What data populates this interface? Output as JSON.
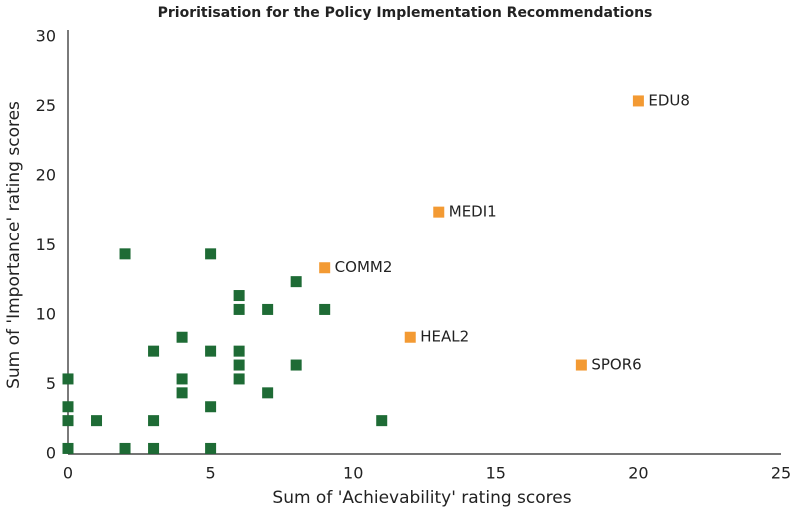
{
  "chart_data": {
    "type": "scatter",
    "title": "Prioritisation for the Policy Implementation Recommendations",
    "x_label": "Sum of 'Achievability' rating scores",
    "y_label": "Sum of 'Importance' rating scores",
    "xlim": [
      0,
      25
    ],
    "xticks": [
      0,
      5,
      10,
      15,
      20,
      25
    ],
    "ylim": [
      0,
      30
    ],
    "yticks": [
      0,
      5,
      10,
      15,
      20,
      25,
      30
    ],
    "grid": false,
    "series": [
      {
        "color": "#1e6b35",
        "x": [
          0,
          0,
          0,
          0,
          1,
          2,
          2,
          3,
          3,
          3,
          4,
          4,
          4,
          5,
          5,
          5,
          5,
          6,
          6,
          6,
          6,
          6,
          7,
          7,
          8,
          8,
          9,
          11
        ],
        "values": [
          5.4,
          3.4,
          2.4,
          0.4,
          2.4,
          14.4,
          0.4,
          7.4,
          2.4,
          0.4,
          8.4,
          5.4,
          4.4,
          14.4,
          7.4,
          3.4,
          0.4,
          11.4,
          10.4,
          7.4,
          6.4,
          5.4,
          10.4,
          4.4,
          12.4,
          6.4,
          10.4,
          2.4
        ]
      },
      {
        "color": "#f39a33",
        "x": [
          20,
          13,
          9,
          12,
          18
        ],
        "values": [
          25.4,
          17.4,
          13.4,
          8.4,
          6.4
        ],
        "point_labels": [
          "EDU8",
          "MEDI1",
          "COMM2",
          "HEAL2",
          "SPOR6"
        ]
      }
    ]
  }
}
